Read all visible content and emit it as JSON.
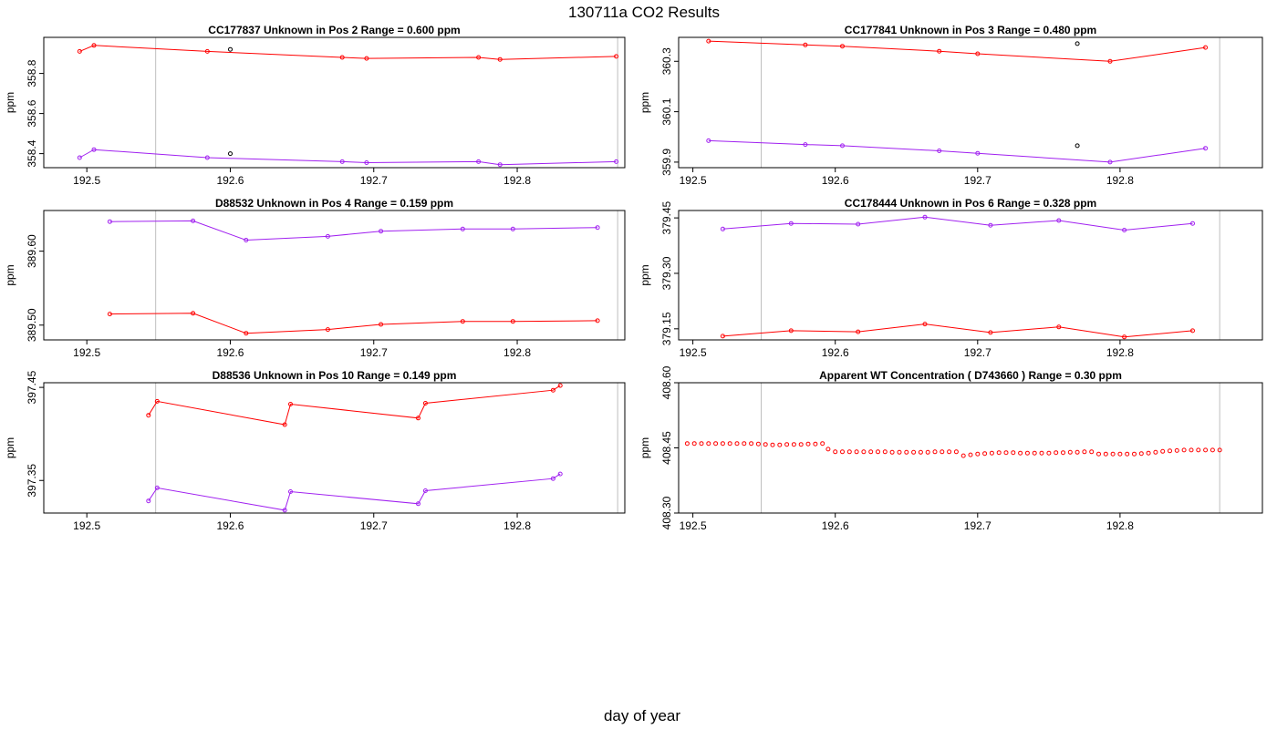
{
  "figure": {
    "title": "130711a  CO2 Results",
    "xlabel": "day of year"
  },
  "chart_data": [
    {
      "type": "line",
      "title": "CC177837    Unknown in Pos 2         Range =  0.600 ppm",
      "ylabel": "ppm",
      "xlim": [
        192.47,
        192.875
      ],
      "ylim": [
        358.33,
        358.98
      ],
      "xticks": [
        "192.5",
        "192.6",
        "192.7",
        "192.8"
      ],
      "yticks": [
        "358.4",
        "358.6",
        "358.8"
      ],
      "vlines": [
        192.548,
        192.87
      ],
      "series": [
        {
          "color": "#ff0000",
          "points": [
            [
              192.495,
              358.91
            ],
            [
              192.505,
              358.94
            ],
            [
              192.584,
              358.91
            ],
            [
              192.678,
              358.88
            ],
            [
              192.695,
              358.875
            ],
            [
              192.773,
              358.88
            ],
            [
              192.788,
              358.87
            ],
            [
              192.869,
              358.885
            ]
          ]
        },
        {
          "color": "#a020f0",
          "points": [
            [
              192.495,
              358.38
            ],
            [
              192.505,
              358.42
            ],
            [
              192.584,
              358.38
            ],
            [
              192.678,
              358.36
            ],
            [
              192.695,
              358.355
            ],
            [
              192.773,
              358.36
            ],
            [
              192.788,
              358.345
            ],
            [
              192.869,
              358.36
            ]
          ]
        },
        {
          "color": "#000000",
          "connect": false,
          "points": [
            [
              192.6,
              358.92
            ],
            [
              192.6,
              358.4
            ]
          ]
        }
      ]
    },
    {
      "type": "line",
      "title": "CC177841    Unknown in Pos 3         Range =  0.480 ppm",
      "ylabel": "ppm",
      "xlim": [
        192.49,
        192.9
      ],
      "ylim": [
        359.878,
        360.395
      ],
      "xticks": [
        "192.5",
        "192.6",
        "192.7",
        "192.8"
      ],
      "yticks": [
        "359.9",
        "360.1",
        "360.3"
      ],
      "vlines": [
        192.548,
        192.87
      ],
      "series": [
        {
          "color": "#ff0000",
          "points": [
            [
              192.511,
              360.38
            ],
            [
              192.579,
              360.365
            ],
            [
              192.605,
              360.36
            ],
            [
              192.673,
              360.34
            ],
            [
              192.7,
              360.33
            ],
            [
              192.793,
              360.3
            ],
            [
              192.86,
              360.355
            ]
          ]
        },
        {
          "color": "#a020f0",
          "points": [
            [
              192.511,
              359.985
            ],
            [
              192.579,
              359.97
            ],
            [
              192.605,
              359.965
            ],
            [
              192.673,
              359.945
            ],
            [
              192.7,
              359.935
            ],
            [
              192.793,
              359.9
            ],
            [
              192.86,
              359.955
            ]
          ]
        },
        {
          "color": "#000000",
          "connect": false,
          "points": [
            [
              192.77,
              360.37
            ],
            [
              192.77,
              359.965
            ]
          ]
        }
      ]
    },
    {
      "type": "line",
      "title": "D88532    Unknown in Pos 4         Range =  0.159 ppm",
      "ylabel": "ppm",
      "xlim": [
        192.47,
        192.875
      ],
      "ylim": [
        389.48,
        389.655
      ],
      "xticks": [
        "192.5",
        "192.6",
        "192.7",
        "192.8"
      ],
      "yticks": [
        "389.50",
        "389.60"
      ],
      "vlines": [
        192.548,
        192.87
      ],
      "series": [
        {
          "color": "#a020f0",
          "points": [
            [
              192.516,
              389.64
            ],
            [
              192.574,
              389.641
            ],
            [
              192.611,
              389.615
            ],
            [
              192.668,
              389.62
            ],
            [
              192.705,
              389.627
            ],
            [
              192.762,
              389.63
            ],
            [
              192.797,
              389.63
            ],
            [
              192.856,
              389.632
            ]
          ]
        },
        {
          "color": "#ff0000",
          "points": [
            [
              192.516,
              389.515
            ],
            [
              192.574,
              389.516
            ],
            [
              192.611,
              389.489
            ],
            [
              192.668,
              389.494
            ],
            [
              192.705,
              389.501
            ],
            [
              192.762,
              389.505
            ],
            [
              192.797,
              389.505
            ],
            [
              192.856,
              389.506
            ]
          ]
        }
      ]
    },
    {
      "type": "line",
      "title": "CC178444    Unknown in Pos 6         Range =  0.328 ppm",
      "ylabel": "ppm",
      "xlim": [
        192.49,
        192.9
      ],
      "ylim": [
        379.12,
        379.47
      ],
      "xticks": [
        "192.5",
        "192.6",
        "192.7",
        "192.8"
      ],
      "yticks": [
        "379.15",
        "379.30",
        "379.45"
      ],
      "vlines": [
        192.548,
        192.87
      ],
      "series": [
        {
          "color": "#a020f0",
          "points": [
            [
              192.521,
              379.42
            ],
            [
              192.569,
              379.435
            ],
            [
              192.616,
              379.433
            ],
            [
              192.663,
              379.452
            ],
            [
              192.709,
              379.43
            ],
            [
              192.757,
              379.443
            ],
            [
              192.803,
              379.417
            ],
            [
              192.851,
              379.435
            ]
          ]
        },
        {
          "color": "#ff0000",
          "points": [
            [
              192.521,
              379.13
            ],
            [
              192.569,
              379.145
            ],
            [
              192.616,
              379.142
            ],
            [
              192.663,
              379.163
            ],
            [
              192.709,
              379.14
            ],
            [
              192.757,
              379.155
            ],
            [
              192.803,
              379.128
            ],
            [
              192.851,
              379.145
            ]
          ]
        }
      ]
    },
    {
      "type": "line",
      "title": "D88536    Unknown in Pos 10         Range =  0.149 ppm",
      "ylabel": "ppm",
      "xlim": [
        192.47,
        192.875
      ],
      "ylim": [
        397.315,
        397.455
      ],
      "xticks": [
        "192.5",
        "192.6",
        "192.7",
        "192.8"
      ],
      "yticks": [
        "397.35",
        "397.45"
      ],
      "vlines": [
        192.548,
        192.87
      ],
      "series": [
        {
          "color": "#ff0000",
          "points": [
            [
              192.543,
              397.42
            ],
            [
              192.549,
              397.435
            ],
            [
              192.638,
              397.41
            ],
            [
              192.642,
              397.432
            ],
            [
              192.731,
              397.417
            ],
            [
              192.736,
              397.433
            ],
            [
              192.825,
              397.447
            ],
            [
              192.83,
              397.452
            ]
          ]
        },
        {
          "color": "#a020f0",
          "points": [
            [
              192.543,
              397.328
            ],
            [
              192.549,
              397.342
            ],
            [
              192.638,
              397.318
            ],
            [
              192.642,
              397.338
            ],
            [
              192.731,
              397.325
            ],
            [
              192.736,
              397.339
            ],
            [
              192.825,
              397.352
            ],
            [
              192.83,
              397.357
            ]
          ]
        }
      ]
    },
    {
      "type": "scatter",
      "title": "Apparent WT Concentration ( D743660 )         Range = 0.30 ppm",
      "ylabel": "ppm",
      "xlim": [
        192.49,
        192.9
      ],
      "ylim": [
        408.3,
        408.6
      ],
      "xticks": [
        "192.5",
        "192.6",
        "192.7",
        "192.8"
      ],
      "yticks": [
        "408.30",
        "408.45",
        "408.60"
      ],
      "vlines": [
        192.548,
        192.87
      ],
      "series": [
        {
          "color": "#ff0000",
          "connect": false,
          "points": [
            [
              192.496,
              408.46
            ],
            [
              192.501,
              408.46
            ],
            [
              192.506,
              408.46
            ],
            [
              192.511,
              408.46
            ],
            [
              192.516,
              408.46
            ],
            [
              192.521,
              408.46
            ],
            [
              192.526,
              408.46
            ],
            [
              192.531,
              408.46
            ],
            [
              192.536,
              408.46
            ],
            [
              192.541,
              408.46
            ],
            [
              192.546,
              408.459
            ],
            [
              192.551,
              408.458
            ],
            [
              192.556,
              408.457
            ],
            [
              192.561,
              408.457
            ],
            [
              192.566,
              408.458
            ],
            [
              192.571,
              408.458
            ],
            [
              192.576,
              408.458
            ],
            [
              192.581,
              408.459
            ],
            [
              192.586,
              408.459
            ],
            [
              192.591,
              408.46
            ],
            [
              192.595,
              408.447
            ],
            [
              192.6,
              408.441
            ],
            [
              192.605,
              408.441
            ],
            [
              192.61,
              408.441
            ],
            [
              192.615,
              408.441
            ],
            [
              192.62,
              408.441
            ],
            [
              192.625,
              408.441
            ],
            [
              192.63,
              408.441
            ],
            [
              192.635,
              408.441
            ],
            [
              192.64,
              408.44
            ],
            [
              192.645,
              408.44
            ],
            [
              192.65,
              408.44
            ],
            [
              192.655,
              408.44
            ],
            [
              192.66,
              408.44
            ],
            [
              192.665,
              408.44
            ],
            [
              192.67,
              408.441
            ],
            [
              192.675,
              408.441
            ],
            [
              192.68,
              408.441
            ],
            [
              192.685,
              408.441
            ],
            [
              192.69,
              408.432
            ],
            [
              192.695,
              408.434
            ],
            [
              192.7,
              408.436
            ],
            [
              192.705,
              408.437
            ],
            [
              192.71,
              408.438
            ],
            [
              192.715,
              408.439
            ],
            [
              192.72,
              408.439
            ],
            [
              192.725,
              408.439
            ],
            [
              192.73,
              408.438
            ],
            [
              192.735,
              408.438
            ],
            [
              192.74,
              408.438
            ],
            [
              192.745,
              408.438
            ],
            [
              192.75,
              408.438
            ],
            [
              192.755,
              408.439
            ],
            [
              192.76,
              408.439
            ],
            [
              192.765,
              408.44
            ],
            [
              192.77,
              408.44
            ],
            [
              192.775,
              408.441
            ],
            [
              192.78,
              408.441
            ],
            [
              192.785,
              408.436
            ],
            [
              192.79,
              408.436
            ],
            [
              192.795,
              408.436
            ],
            [
              192.8,
              408.436
            ],
            [
              192.805,
              408.436
            ],
            [
              192.81,
              408.436
            ],
            [
              192.815,
              408.437
            ],
            [
              192.82,
              408.438
            ],
            [
              192.825,
              408.44
            ],
            [
              192.83,
              408.442
            ],
            [
              192.835,
              408.443
            ],
            [
              192.84,
              408.444
            ],
            [
              192.845,
              408.445
            ],
            [
              192.85,
              408.445
            ],
            [
              192.855,
              408.445
            ],
            [
              192.86,
              408.445
            ],
            [
              192.865,
              408.445
            ],
            [
              192.87,
              408.445
            ]
          ]
        }
      ]
    }
  ],
  "colors": {
    "axis": "#000000",
    "vline": "#bebebe"
  }
}
